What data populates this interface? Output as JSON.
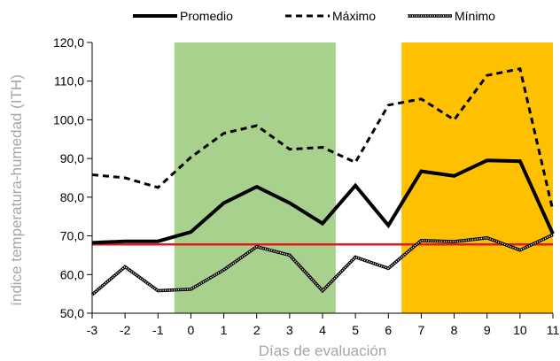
{
  "chart_data": {
    "type": "line",
    "xlabel": "Días de evaluación",
    "ylabel": "índice temperatura-humedad (ITH)",
    "x": [
      -3,
      -2,
      -1,
      0,
      1,
      2,
      3,
      4,
      5,
      6,
      7,
      8,
      9,
      10,
      11
    ],
    "x_tick_labels": [
      "-3",
      "-2",
      "-1",
      "0",
      "1",
      "2",
      "3",
      "4",
      "5",
      "6",
      "7",
      "8",
      "9",
      "10",
      "11"
    ],
    "ylim": [
      50,
      120
    ],
    "y_ticks": [
      50,
      60,
      70,
      80,
      90,
      100,
      110,
      120
    ],
    "y_tick_labels": [
      "50,0",
      "60,0",
      "70,0",
      "80,0",
      "90,0",
      "100,0",
      "110,0",
      "120,0"
    ],
    "grid": false,
    "legend_position": "top",
    "series": [
      {
        "name": "Promedio",
        "style": "solid-thick",
        "color": "#000000",
        "values": [
          68.2,
          68.6,
          68.6,
          71.0,
          78.5,
          82.7,
          78.5,
          73.2,
          83.0,
          72.7,
          86.7,
          85.5,
          89.5,
          89.3,
          70.5
        ]
      },
      {
        "name": "Máximo",
        "style": "dashed",
        "color": "#000000",
        "values": [
          85.8,
          85.0,
          82.5,
          90.3,
          96.5,
          98.5,
          92.4,
          92.9,
          89.0,
          103.8,
          105.4,
          100.0,
          111.5,
          113.2,
          76.5
        ]
      },
      {
        "name": "Mínimo",
        "style": "dotted-double",
        "color": "#000000",
        "values": [
          54.8,
          62.0,
          55.8,
          56.2,
          61.2,
          67.2,
          65.0,
          55.8,
          64.5,
          61.6,
          68.8,
          68.5,
          69.5,
          66.3,
          70.3
        ]
      }
    ],
    "reference_line": {
      "y": 67.8,
      "color": "#e31a1c"
    },
    "shaded_regions": [
      {
        "x_from": -0.5,
        "x_to": 4.4,
        "color": "#a9d18e"
      },
      {
        "x_from": 6.4,
        "x_to": 11,
        "color": "#ffc000"
      }
    ]
  }
}
